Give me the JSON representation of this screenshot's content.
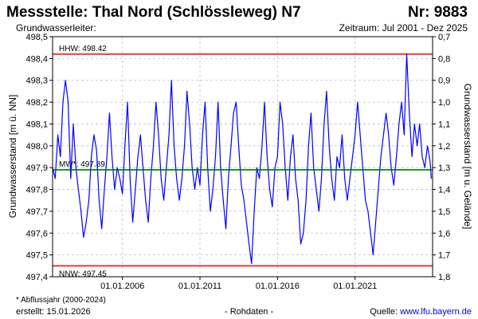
{
  "header": {
    "title": "Messstelle: Thal Nord (Schlössleweg) N7",
    "nr": "Nr: 9883",
    "aquifer_label": "Grundwasserleiter:",
    "period": "Zeitraum: Jul 2001 - Dez 2025"
  },
  "footer": {
    "footnote": "* Abflussjahr (2000-2024)",
    "created": "erstellt:  15.01.2026",
    "rawdata": "- Rohdaten -",
    "source_label": "Quelle: ",
    "source_url": "www.lfu.bayern.de"
  },
  "colors": {
    "series": "#0000ff",
    "hhw": "#ff0000",
    "nnw": "#ff0000",
    "mw": "#008000",
    "grid": "#bfbfbf",
    "frame": "#000000"
  },
  "chart_data": {
    "type": "line",
    "ylabel": "Grundwasserstand [m ü. NN]",
    "ylabel_right": "Grundwasserstand [m u. Gelände]",
    "ylim": [
      497.4,
      498.5
    ],
    "ylim_right": [
      0.7,
      1.8
    ],
    "yticks": [
      "497,4",
      "497,5",
      "497,6",
      "497,7",
      "497,8",
      "497,9",
      "498,0",
      "498,1",
      "498,2",
      "498,3",
      "498,4",
      "498,5"
    ],
    "yticks_right": [
      "1,8",
      "1,7",
      "1,6",
      "1,5",
      "1,4",
      "1,3",
      "1,2",
      "1,1",
      "1,0",
      "0,9",
      "0,8",
      "0,7"
    ],
    "xlim": [
      "2001-07-01",
      "2025-12-31"
    ],
    "xticks": [
      {
        "date": "2006-01-01",
        "label": "01.01.2006"
      },
      {
        "date": "2011-01-01",
        "label": "01.01.2011"
      },
      {
        "date": "2016-01-01",
        "label": "01.01.2016"
      },
      {
        "date": "2021-01-01",
        "label": "01.01.2021"
      }
    ],
    "grid": true,
    "reference_lines": [
      {
        "name": "HHW",
        "label": "HHW: 498.42",
        "value": 498.42,
        "color": "#ff0000"
      },
      {
        "name": "MW",
        "label": "MW*: 497.89",
        "value": 497.89,
        "color": "#008000"
      },
      {
        "name": "NNW",
        "label": "NNW: 497.45",
        "value": 497.45,
        "color": "#ff0000"
      }
    ],
    "series": [
      {
        "values": [
          [
            "2001-07",
            497.9
          ],
          [
            "2001-09",
            497.85
          ],
          [
            "2001-11",
            498.05
          ],
          [
            "2002-01",
            497.95
          ],
          [
            "2002-03",
            498.2
          ],
          [
            "2002-05",
            498.3
          ],
          [
            "2002-07",
            498.2
          ],
          [
            "2002-09",
            497.85
          ],
          [
            "2002-11",
            498.1
          ],
          [
            "2003-01",
            497.9
          ],
          [
            "2003-03",
            497.8
          ],
          [
            "2003-05",
            497.7
          ],
          [
            "2003-07",
            497.58
          ],
          [
            "2003-09",
            497.65
          ],
          [
            "2003-11",
            497.75
          ],
          [
            "2004-01",
            497.95
          ],
          [
            "2004-03",
            498.05
          ],
          [
            "2004-05",
            497.98
          ],
          [
            "2004-07",
            497.75
          ],
          [
            "2004-09",
            497.62
          ],
          [
            "2004-11",
            497.8
          ],
          [
            "2005-01",
            497.95
          ],
          [
            "2005-03",
            498.15
          ],
          [
            "2005-05",
            497.95
          ],
          [
            "2005-07",
            497.8
          ],
          [
            "2005-09",
            497.9
          ],
          [
            "2005-11",
            497.85
          ],
          [
            "2006-01",
            497.78
          ],
          [
            "2006-03",
            498.0
          ],
          [
            "2006-05",
            498.2
          ],
          [
            "2006-07",
            497.85
          ],
          [
            "2006-09",
            497.65
          ],
          [
            "2006-11",
            497.8
          ],
          [
            "2007-01",
            497.95
          ],
          [
            "2007-03",
            498.05
          ],
          [
            "2007-05",
            497.9
          ],
          [
            "2007-07",
            497.75
          ],
          [
            "2007-09",
            497.65
          ],
          [
            "2007-11",
            497.85
          ],
          [
            "2008-01",
            498.0
          ],
          [
            "2008-03",
            498.2
          ],
          [
            "2008-05",
            498.05
          ],
          [
            "2008-07",
            497.85
          ],
          [
            "2008-09",
            497.75
          ],
          [
            "2008-11",
            497.9
          ],
          [
            "2009-01",
            498.05
          ],
          [
            "2009-03",
            498.3
          ],
          [
            "2009-05",
            498.0
          ],
          [
            "2009-07",
            497.85
          ],
          [
            "2009-09",
            497.75
          ],
          [
            "2009-11",
            497.85
          ],
          [
            "2010-01",
            498.0
          ],
          [
            "2010-03",
            498.25
          ],
          [
            "2010-05",
            498.1
          ],
          [
            "2010-07",
            497.9
          ],
          [
            "2010-09",
            497.8
          ],
          [
            "2010-11",
            497.9
          ],
          [
            "2011-01",
            497.82
          ],
          [
            "2011-03",
            498.05
          ],
          [
            "2011-05",
            498.2
          ],
          [
            "2011-07",
            497.9
          ],
          [
            "2011-09",
            497.7
          ],
          [
            "2011-11",
            497.8
          ],
          [
            "2012-01",
            497.95
          ],
          [
            "2012-03",
            498.2
          ],
          [
            "2012-05",
            497.9
          ],
          [
            "2012-07",
            497.75
          ],
          [
            "2012-09",
            497.62
          ],
          [
            "2012-11",
            497.85
          ],
          [
            "2013-01",
            498.0
          ],
          [
            "2013-03",
            498.15
          ],
          [
            "2013-05",
            498.2
          ],
          [
            "2013-07",
            498.0
          ],
          [
            "2013-09",
            497.82
          ],
          [
            "2013-11",
            497.75
          ],
          [
            "2014-01",
            497.65
          ],
          [
            "2014-03",
            497.55
          ],
          [
            "2014-05",
            497.46
          ],
          [
            "2014-07",
            497.7
          ],
          [
            "2014-09",
            497.9
          ],
          [
            "2014-11",
            497.85
          ],
          [
            "2015-01",
            498.0
          ],
          [
            "2015-03",
            498.2
          ],
          [
            "2015-05",
            497.95
          ],
          [
            "2015-07",
            497.8
          ],
          [
            "2015-09",
            497.72
          ],
          [
            "2015-11",
            497.9
          ],
          [
            "2016-01",
            497.95
          ],
          [
            "2016-03",
            498.2
          ],
          [
            "2016-05",
            498.1
          ],
          [
            "2016-07",
            497.9
          ],
          [
            "2016-09",
            497.75
          ],
          [
            "2016-11",
            497.95
          ],
          [
            "2017-01",
            498.05
          ],
          [
            "2017-03",
            497.85
          ],
          [
            "2017-05",
            497.75
          ],
          [
            "2017-07",
            497.55
          ],
          [
            "2017-09",
            497.6
          ],
          [
            "2017-11",
            497.75
          ],
          [
            "2018-01",
            498.0
          ],
          [
            "2018-03",
            498.15
          ],
          [
            "2018-05",
            497.9
          ],
          [
            "2018-07",
            497.8
          ],
          [
            "2018-09",
            497.7
          ],
          [
            "2018-11",
            497.85
          ],
          [
            "2019-01",
            498.1
          ],
          [
            "2019-03",
            498.25
          ],
          [
            "2019-05",
            498.0
          ],
          [
            "2019-07",
            497.85
          ],
          [
            "2019-09",
            497.75
          ],
          [
            "2019-11",
            497.95
          ],
          [
            "2020-01",
            497.9
          ],
          [
            "2020-03",
            498.05
          ],
          [
            "2020-05",
            497.85
          ],
          [
            "2020-07",
            497.75
          ],
          [
            "2020-09",
            497.85
          ],
          [
            "2020-11",
            497.95
          ],
          [
            "2021-01",
            498.05
          ],
          [
            "2021-03",
            498.2
          ],
          [
            "2021-05",
            498.05
          ],
          [
            "2021-07",
            497.9
          ],
          [
            "2021-09",
            497.75
          ],
          [
            "2021-11",
            497.7
          ],
          [
            "2022-01",
            497.6
          ],
          [
            "2022-03",
            497.5
          ],
          [
            "2022-05",
            497.65
          ],
          [
            "2022-07",
            497.8
          ],
          [
            "2022-09",
            497.95
          ],
          [
            "2022-11",
            498.05
          ],
          [
            "2023-01",
            498.15
          ],
          [
            "2023-03",
            498.05
          ],
          [
            "2023-05",
            497.9
          ],
          [
            "2023-07",
            497.82
          ],
          [
            "2023-09",
            497.95
          ],
          [
            "2023-11",
            498.1
          ],
          [
            "2024-01",
            498.2
          ],
          [
            "2024-03",
            498.05
          ],
          [
            "2024-05",
            498.42
          ],
          [
            "2024-07",
            498.15
          ],
          [
            "2024-09",
            497.95
          ],
          [
            "2024-11",
            498.1
          ],
          [
            "2025-01",
            498.0
          ],
          [
            "2025-03",
            498.1
          ],
          [
            "2025-05",
            497.95
          ],
          [
            "2025-07",
            497.9
          ],
          [
            "2025-09",
            498.0
          ],
          [
            "2025-11",
            497.93
          ],
          [
            "2025-12",
            497.85
          ]
        ]
      }
    ]
  }
}
